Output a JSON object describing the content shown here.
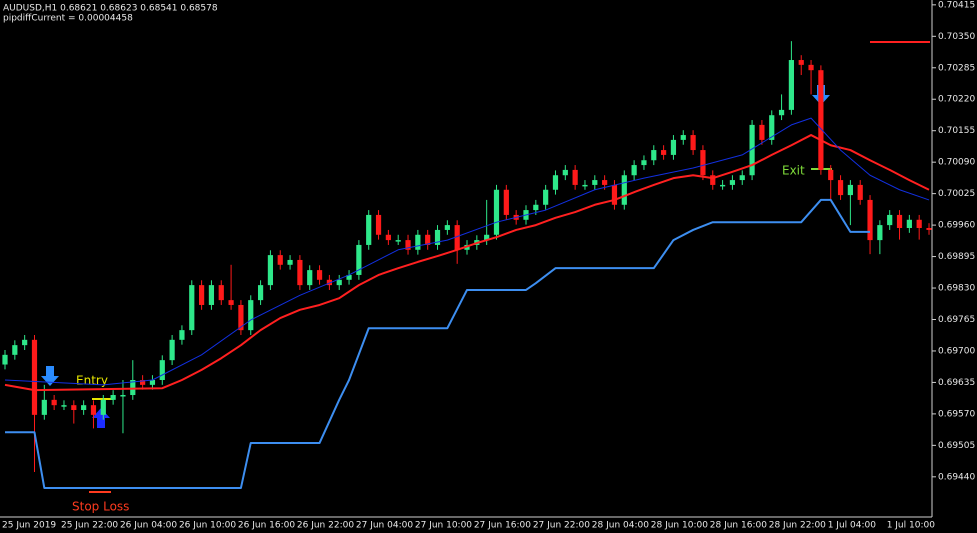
{
  "chart_data": {
    "type": "candlestick",
    "header": "AUDUSD,H1  0.68621 0.68623 0.68541 0.68578",
    "subheader": "pipdiffCurrent = 0.00004458",
    "annotations": {
      "entry": "Entry",
      "exit": "Exit",
      "stop_loss": "Stop Loss"
    },
    "categories": [
      "25 Jun 2019",
      null,
      null,
      null,
      null,
      null,
      "25 Jun 22:00",
      null,
      null,
      null,
      null,
      null,
      "26 Jun 04:00",
      null,
      null,
      null,
      null,
      null,
      "26 Jun 10:00",
      null,
      null,
      null,
      null,
      null,
      "26 Jun 16:00",
      null,
      null,
      null,
      null,
      null,
      "26 Jun 22:00",
      null,
      null,
      null,
      null,
      null,
      "27 Jun 04:00",
      null,
      null,
      null,
      null,
      null,
      "27 Jun 10:00",
      null,
      null,
      null,
      null,
      null,
      "27 Jun 16:00",
      null,
      null,
      null,
      null,
      null,
      "27 Jun 22:00",
      null,
      null,
      null,
      null,
      null,
      "28 Jun 04:00",
      null,
      null,
      null,
      null,
      null,
      "28 Jun 10:00",
      null,
      null,
      null,
      null,
      null,
      "28 Jun 16:00",
      null,
      null,
      null,
      null,
      null,
      "28 Jun 22:00",
      null,
      null,
      null,
      null,
      null,
      "1 Jul 04:00",
      null,
      null,
      null,
      null,
      null,
      "1 Jul 10:00",
      null,
      null,
      null,
      null
    ],
    "open": [
      0.69672,
      0.69692,
      0.69712,
      0.69723,
      0.69568,
      0.69599,
      0.69588,
      0.69588,
      0.69578,
      0.69588,
      0.69568,
      0.69599,
      0.69609,
      0.69609,
      0.6964,
      0.6963,
      0.6964,
      0.69681,
      0.69723,
      0.69743,
      0.69836,
      0.69795,
      0.69836,
      0.69805,
      0.69795,
      0.69743,
      0.69805,
      0.69836,
      0.69898,
      0.69878,
      0.69888,
      0.69836,
      0.69867,
      0.69847,
      0.69836,
      0.69847,
      0.69857,
      0.69919,
      0.69981,
      0.6994,
      0.69929,
      0.69929,
      0.69909,
      0.6994,
      0.69919,
      0.6995,
      0.6996,
      0.69909,
      0.69919,
      0.69929,
      0.6994,
      0.70033,
      0.69981,
      0.69971,
      0.69991,
      0.70002,
      0.70033,
      0.70063,
      0.70074,
      0.70043,
      0.70043,
      0.70053,
      0.70043,
      0.70002,
      0.70063,
      0.70084,
      0.70094,
      0.70115,
      0.70105,
      0.70136,
      0.70146,
      0.70115,
      0.70063,
      0.70043,
      0.70043,
      0.70053,
      0.70063,
      0.70167,
      0.70136,
      0.70187,
      0.70198,
      0.70301,
      0.70291,
      0.7028,
      0.70074,
      0.70053,
      0.70022,
      0.70043,
      0.70012,
      0.69929,
      0.6996,
      0.69981,
      0.69954,
      0.69971,
      0.69954
    ],
    "high": [
      0.69702,
      0.69722,
      0.69733,
      0.69733,
      0.6963,
      0.69609,
      0.69598,
      0.69598,
      0.69598,
      0.69598,
      0.69609,
      0.69619,
      0.6964,
      0.69681,
      0.6965,
      0.6965,
      0.69691,
      0.69733,
      0.69753,
      0.69846,
      0.69846,
      0.69846,
      0.69846,
      0.69878,
      0.69805,
      0.69815,
      0.69846,
      0.69908,
      0.69908,
      0.69898,
      0.69898,
      0.69877,
      0.69877,
      0.69857,
      0.69857,
      0.69867,
      0.69929,
      0.69991,
      0.69991,
      0.6995,
      0.6994,
      0.6994,
      0.6995,
      0.6995,
      0.6996,
      0.6997,
      0.6997,
      0.69929,
      0.69939,
      0.70012,
      0.70043,
      0.70043,
      0.69991,
      0.70001,
      0.70012,
      0.70043,
      0.70073,
      0.70084,
      0.70084,
      0.70053,
      0.70063,
      0.70063,
      0.70053,
      0.70073,
      0.70094,
      0.70104,
      0.70125,
      0.70125,
      0.70146,
      0.70156,
      0.70156,
      0.70125,
      0.70073,
      0.70053,
      0.70063,
      0.70073,
      0.70177,
      0.70177,
      0.70197,
      0.7023,
      0.7034,
      0.70311,
      0.70301,
      0.7029,
      0.70084,
      0.70063,
      0.70053,
      0.70053,
      0.70022,
      0.6997,
      0.69991,
      0.69991,
      0.69981,
      0.69981,
      0.69964
    ],
    "low": [
      0.69662,
      0.69682,
      0.69702,
      0.6945,
      0.69558,
      0.69578,
      0.69578,
      0.6955,
      0.69568,
      0.6954,
      0.69558,
      0.69589,
      0.6953,
      0.69599,
      0.6962,
      0.6962,
      0.6963,
      0.69671,
      0.69713,
      0.69733,
      0.69785,
      0.69785,
      0.69795,
      0.69785,
      0.69733,
      0.69733,
      0.69795,
      0.69826,
      0.69868,
      0.69868,
      0.69826,
      0.69826,
      0.69837,
      0.69826,
      0.69826,
      0.69837,
      0.69847,
      0.69909,
      0.6993,
      0.69919,
      0.69919,
      0.69899,
      0.69899,
      0.69909,
      0.69909,
      0.6994,
      0.6988,
      0.69899,
      0.69909,
      0.69919,
      0.6993,
      0.69971,
      0.69961,
      0.69961,
      0.69981,
      0.69992,
      0.70023,
      0.70053,
      0.70033,
      0.70033,
      0.70033,
      0.70033,
      0.69992,
      0.69992,
      0.70053,
      0.70074,
      0.70084,
      0.70095,
      0.70095,
      0.70126,
      0.70105,
      0.70053,
      0.70033,
      0.70033,
      0.70033,
      0.70043,
      0.70053,
      0.70126,
      0.70126,
      0.70177,
      0.70188,
      0.7027,
      0.7023,
      0.70064,
      0.70012,
      0.70012,
      0.6996,
      0.70002,
      0.699,
      0.699,
      0.6995,
      0.6993,
      0.69944,
      0.6993,
      0.6994
    ],
    "close": [
      0.69692,
      0.69712,
      0.69723,
      0.69568,
      0.69599,
      0.69588,
      0.69588,
      0.69578,
      0.69588,
      0.69568,
      0.69599,
      0.69609,
      0.69609,
      0.6964,
      0.6963,
      0.6964,
      0.69681,
      0.69723,
      0.69743,
      0.69836,
      0.69795,
      0.69836,
      0.69805,
      0.69795,
      0.69743,
      0.69805,
      0.69836,
      0.69898,
      0.69878,
      0.69888,
      0.69836,
      0.69867,
      0.69847,
      0.69836,
      0.69847,
      0.69857,
      0.69919,
      0.69981,
      0.6994,
      0.69929,
      0.69929,
      0.69909,
      0.6994,
      0.69919,
      0.6995,
      0.6996,
      0.69909,
      0.69919,
      0.69929,
      0.6994,
      0.70033,
      0.69981,
      0.69971,
      0.69991,
      0.70002,
      0.70033,
      0.70063,
      0.70074,
      0.70043,
      0.70043,
      0.70053,
      0.70043,
      0.70002,
      0.70063,
      0.70084,
      0.70094,
      0.70115,
      0.70105,
      0.70136,
      0.70146,
      0.70115,
      0.70063,
      0.70043,
      0.70043,
      0.70053,
      0.70063,
      0.70167,
      0.70136,
      0.70187,
      0.70198,
      0.70301,
      0.70291,
      0.7028,
      0.70074,
      0.70053,
      0.70022,
      0.70043,
      0.70012,
      0.69929,
      0.6996,
      0.69981,
      0.69954,
      0.69971,
      0.69954,
      0.6995
    ],
    "up_color": "#2ee88a",
    "down_color": "#ff1a1a",
    "lines": [
      {
        "color": "#ff2020",
        "width": 2,
        "x": [
          0,
          3,
          16,
          18,
          20,
          22,
          24,
          26,
          28,
          30,
          32,
          34,
          36,
          38,
          40,
          42,
          44,
          46,
          48,
          50,
          52,
          54,
          56,
          58,
          60,
          62,
          64,
          66,
          68,
          70,
          72,
          74,
          76,
          78,
          80,
          82,
          84,
          86,
          88,
          90,
          92,
          94
        ],
        "values": [
          0.6963,
          0.69619,
          0.69623,
          0.6964,
          0.69661,
          0.69685,
          0.69712,
          0.69743,
          0.69768,
          0.69785,
          0.69795,
          0.69809,
          0.69836,
          0.69857,
          0.69871,
          0.69884,
          0.69896,
          0.69909,
          0.69923,
          0.69935,
          0.6995,
          0.6996,
          0.69975,
          0.69987,
          0.70002,
          0.70012,
          0.70028,
          0.70043,
          0.70057,
          0.70063,
          0.70057,
          0.7007,
          0.70084,
          0.70105,
          0.70125,
          0.70146,
          0.70125,
          0.70115,
          0.70094,
          0.70074,
          0.70053,
          0.70033
        ]
      },
      {
        "color": "#1230e0",
        "width": 1,
        "x": [
          0,
          10,
          15,
          20,
          25,
          30,
          35,
          40,
          45,
          50,
          55,
          60,
          65,
          70,
          75,
          80,
          82,
          85,
          88,
          91,
          94
        ],
        "values": [
          0.6964,
          0.6963,
          0.6964,
          0.69692,
          0.69764,
          0.69815,
          0.69857,
          0.69909,
          0.69929,
          0.69966,
          0.69991,
          0.70033,
          0.70057,
          0.70078,
          0.70105,
          0.70167,
          0.70181,
          0.70115,
          0.70063,
          0.70033,
          0.70012
        ]
      },
      {
        "color": "#3d8ef0",
        "width": 2,
        "x": [
          0,
          3,
          4,
          24,
          25,
          32,
          34,
          35,
          37,
          45,
          47,
          53,
          54,
          56,
          66,
          68,
          70,
          72,
          81,
          83,
          84,
          86,
          88
        ],
        "values": [
          0.69532,
          0.69532,
          0.69417,
          0.69417,
          0.6951,
          0.6951,
          0.69599,
          0.6964,
          0.69747,
          0.69747,
          0.69826,
          0.69826,
          0.6984,
          0.69871,
          0.69871,
          0.69929,
          0.6995,
          0.69966,
          0.69966,
          0.70012,
          0.70012,
          0.69946,
          0.69946
        ]
      }
    ],
    "ylim": [
      0.69357,
      0.70425
    ],
    "yticks": [
      0.70415,
      {
        "value": 0.7035,
        "label": "0.70350"
      },
      0.70285,
      {
        "value": 0.7022,
        "label": "0.70220"
      },
      0.70155,
      {
        "value": 0.7009,
        "label": "0.70090"
      },
      0.70025,
      {
        "value": 0.6996,
        "label": "0.69960"
      },
      0.69895,
      {
        "value": 0.6983,
        "label": "0.69830"
      },
      0.69765,
      {
        "value": 0.697,
        "label": "0.69700"
      },
      0.69635,
      {
        "value": 0.6957,
        "label": "0.69570"
      },
      0.69505,
      {
        "value": 0.6944,
        "label": "0.69440"
      }
    ],
    "grid": false
  }
}
